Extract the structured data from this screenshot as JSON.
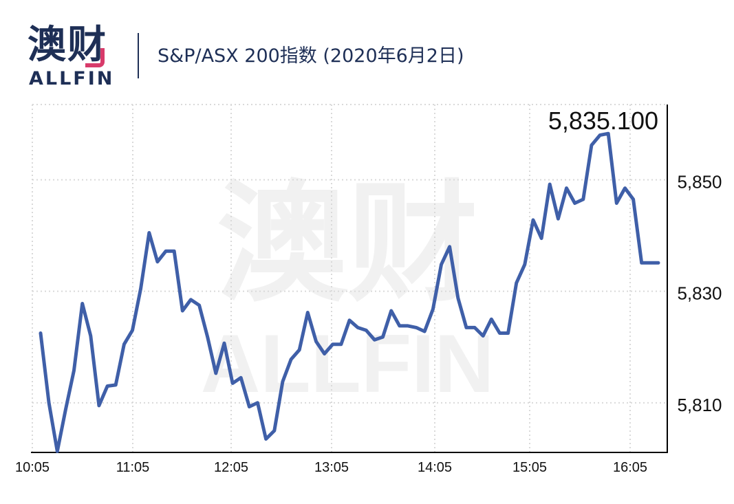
{
  "logo": {
    "cn": "澳财",
    "en": "ALLFIN"
  },
  "title": "S&P/ASX 200指数 (2020年6月2日)",
  "watermark": {
    "cn": "澳财",
    "en": "ALLFIN"
  },
  "colors": {
    "line": "#3f5fa8",
    "brand": "#1e2f56",
    "accent": "#d83b6a",
    "grid": "#d9d9d9"
  },
  "chart_data": {
    "type": "line",
    "title": "S&P/ASX 200指数 (2020年6月2日)",
    "xlabel": "",
    "ylabel": "",
    "x_ticks": [
      "10:05",
      "11:05",
      "12:05",
      "13:05",
      "14:05",
      "15:05",
      "16:05"
    ],
    "y_ticks": [
      5810,
      5830,
      5850
    ],
    "y_tick_labels": [
      "5,810",
      "5,830",
      "5,850"
    ],
    "ylim": [
      5801.1,
      5863.5
    ],
    "grid": true,
    "last_value_label": "5,835.100",
    "series": [
      {
        "values": [
          5822.5,
          5810.0,
          5801.3,
          5808.8,
          5815.8,
          5827.8,
          5822.0,
          5809.5,
          5813.0,
          5813.2,
          5820.5,
          5823.0,
          5830.5,
          5840.5,
          5835.3,
          5837.2,
          5837.2,
          5826.5,
          5828.5,
          5827.5,
          5821.8,
          5815.3,
          5820.7,
          5813.5,
          5814.5,
          5809.3,
          5810.0,
          5803.5,
          5805.0,
          5813.8,
          5817.8,
          5819.5,
          5826.2,
          5821.0,
          5818.8,
          5820.5,
          5820.5,
          5824.8,
          5823.5,
          5823.0,
          5821.3,
          5821.8,
          5826.5,
          5823.8,
          5823.8,
          5823.5,
          5822.8,
          5826.8,
          5834.8,
          5838.0,
          5828.8,
          5823.5,
          5823.5,
          5822.0,
          5825.0,
          5822.5,
          5822.5,
          5831.5,
          5834.8,
          5842.8,
          5839.5,
          5849.2,
          5843.0,
          5848.5,
          5845.8,
          5846.5,
          5856.2,
          5858.0,
          5858.3,
          5845.8,
          5848.5,
          5846.5,
          5835.1,
          5835.1,
          5835.1
        ]
      }
    ]
  }
}
